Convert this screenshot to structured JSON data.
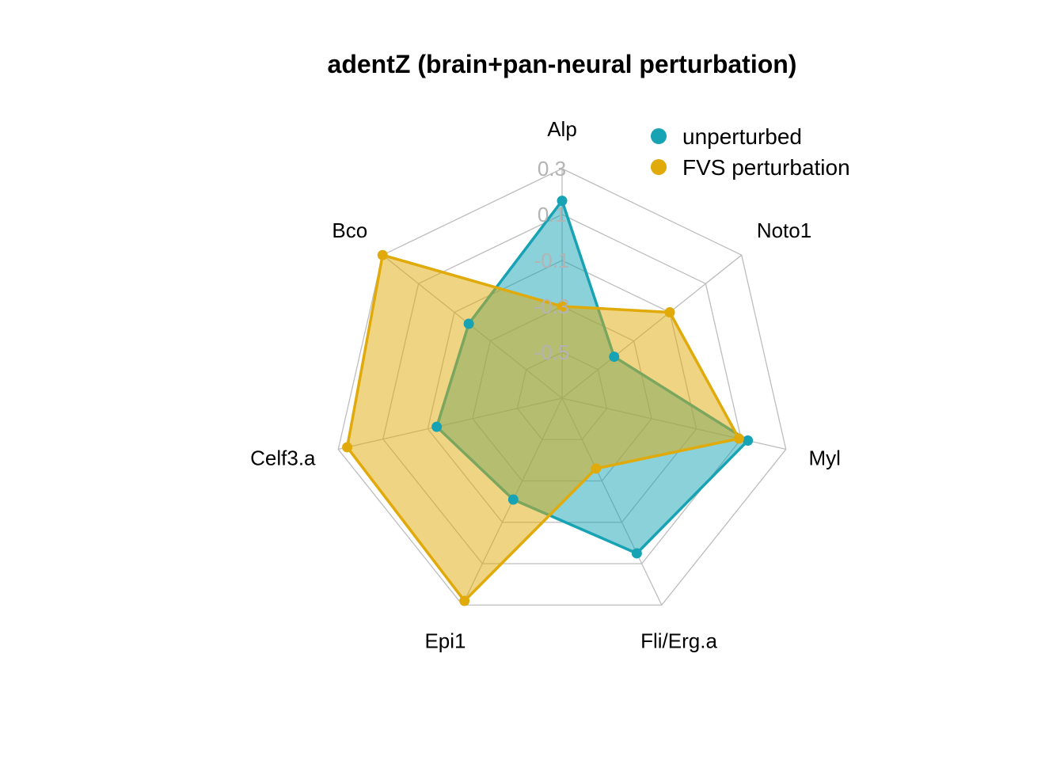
{
  "chart_data": {
    "type": "radar",
    "title": "adentZ (brain+pan-neural perturbation)",
    "axes": [
      "Alp",
      "Noto1",
      "Myl",
      "Fli/Erg.a",
      "Epi1",
      "Celf3.a",
      "Bco"
    ],
    "grid_ticks": [
      -0.5,
      -0.3,
      -0.1,
      0.1,
      0.3
    ],
    "range": [
      -0.7,
      0.3
    ],
    "grid": true,
    "legend_position": "top-right",
    "series": [
      {
        "name": "unperturbed",
        "color": "#17a3b3",
        "fill": "rgba(23,163,179,0.5)",
        "values": [
          0.16,
          -0.41,
          0.13,
          0.05,
          -0.21,
          -0.14,
          -0.18
        ]
      },
      {
        "name": "FVS perturbation",
        "color": "#e0aa0a",
        "fill": "rgba(224,170,10,0.5)",
        "values": [
          -0.3,
          -0.1,
          0.09,
          -0.36,
          0.28,
          0.26,
          0.3
        ]
      }
    ]
  }
}
